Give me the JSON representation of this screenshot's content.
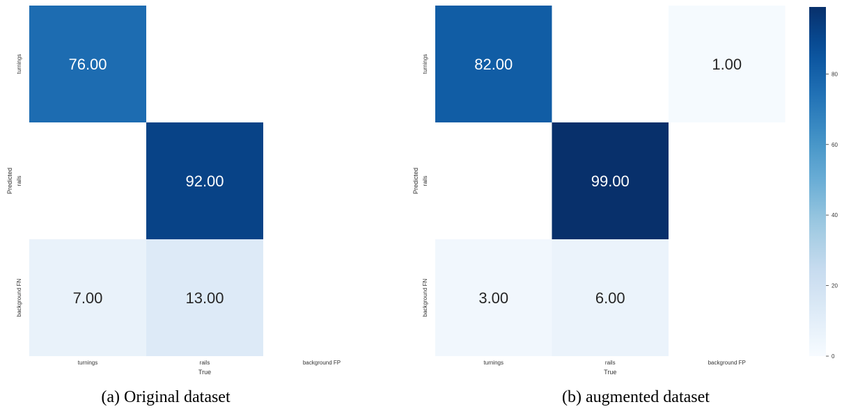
{
  "colors": {
    "low": "#f7fbff",
    "high": "#08306b"
  },
  "chart_data": [
    {
      "type": "heatmap",
      "caption": "(a) Original dataset",
      "row_labels": [
        "turnings",
        "rails",
        "background FN"
      ],
      "col_labels": [
        "turnings",
        "rails",
        "background FP"
      ],
      "row_axis_title": "Predicted",
      "col_axis_title": "True",
      "values": [
        [
          76,
          null,
          null
        ],
        [
          null,
          92,
          null
        ],
        [
          7,
          13,
          null
        ]
      ],
      "value_labels": [
        [
          "76.00",
          "",
          ""
        ],
        [
          "",
          "92.00",
          ""
        ],
        [
          "7.00",
          "13.00",
          ""
        ]
      ],
      "vmin": 0,
      "vmax": 99
    },
    {
      "type": "heatmap",
      "caption": "(b) augmented dataset",
      "row_labels": [
        "turnings",
        "rails",
        "background FN"
      ],
      "col_labels": [
        "turnings",
        "rails",
        "background FP"
      ],
      "row_axis_title": "Predicted",
      "col_axis_title": "True",
      "values": [
        [
          82,
          null,
          1
        ],
        [
          null,
          99,
          null
        ],
        [
          3,
          6,
          null
        ]
      ],
      "value_labels": [
        [
          "82.00",
          "",
          "1.00"
        ],
        [
          "",
          "99.00",
          ""
        ],
        [
          "3.00",
          "6.00",
          ""
        ]
      ],
      "vmin": 0,
      "vmax": 99
    }
  ],
  "colorbar": {
    "ticks": [
      "0",
      "20",
      "40",
      "60",
      "80"
    ],
    "tick_values": [
      0,
      20,
      40,
      60,
      80
    ],
    "vmin": 0,
    "vmax": 99
  }
}
